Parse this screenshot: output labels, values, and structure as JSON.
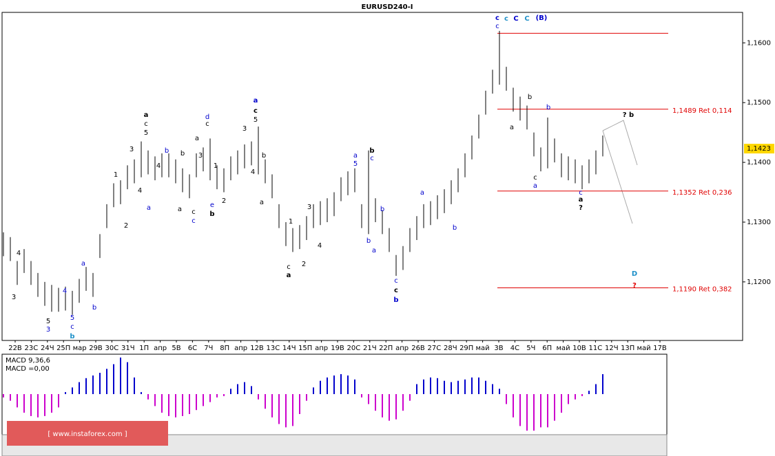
{
  "chart_data": {
    "type": "ohlc",
    "title": "EURUSD240-I",
    "ylim": [
      1.1102,
      1.1651
    ],
    "yticks": [
      {
        "value": 1.16,
        "label": "1,1600"
      },
      {
        "value": 1.15,
        "label": "1,1500"
      },
      {
        "value": 1.14,
        "label": "1,1400"
      },
      {
        "value": 1.13,
        "label": "1,1300"
      },
      {
        "value": 1.12,
        "label": "1,1200"
      }
    ],
    "categories": [
      "22В",
      "23С",
      "24Ч",
      "25П",
      "мар",
      "29В",
      "30С",
      "31Ч",
      "1П",
      "апр",
      "5В",
      "6С",
      "7Ч",
      "8П",
      "апр",
      "12В",
      "13С",
      "14Ч",
      "15П",
      "апр",
      "19В",
      "20С",
      "21Ч",
      "22П",
      "апр",
      "26В",
      "27С",
      "28Ч",
      "29П",
      "май",
      "3В",
      "4С",
      "5Ч",
      "6П",
      "май",
      "10В",
      "11С",
      "12Ч",
      "13П",
      "май",
      "17В"
    ],
    "color": "#000000",
    "high": [
      1.1283,
      1.1275,
      1.1235,
      1.1255,
      1.1235,
      1.1215,
      1.12,
      1.1195,
      1.119,
      1.1192,
      1.1185,
      1.1205,
      1.1225,
      1.1215,
      1.128,
      1.133,
      1.1365,
      1.137,
      1.1395,
      1.1405,
      1.1435,
      1.142,
      1.141,
      1.1415,
      1.1415,
      1.1405,
      1.139,
      1.138,
      1.1415,
      1.1425,
      1.144,
      1.1395,
      1.139,
      1.141,
      1.142,
      1.143,
      1.1435,
      1.146,
      1.1405,
      1.138,
      1.133,
      1.13,
      1.129,
      1.1295,
      1.131,
      1.133,
      1.1335,
      1.134,
      1.135,
      1.1375,
      1.1385,
      1.139,
      1.133,
      1.142,
      1.134,
      1.132,
      1.129,
      1.1245,
      1.126,
      1.129,
      1.131,
      1.133,
      1.1335,
      1.1345,
      1.1355,
      1.137,
      1.139,
      1.1415,
      1.1445,
      1.148,
      1.152,
      1.1555,
      1.162,
      1.156,
      1.1525,
      1.151,
      1.1495,
      1.145,
      1.1425,
      1.1475,
      1.144,
      1.1415,
      1.141,
      1.1405,
      1.1395,
      1.1405,
      1.142,
      1.1445
    ],
    "low": [
      1.1243,
      1.1235,
      1.1195,
      1.1215,
      1.1195,
      1.1175,
      1.116,
      1.115,
      1.115,
      1.1152,
      1.1145,
      1.1165,
      1.1185,
      1.1175,
      1.124,
      1.129,
      1.1325,
      1.133,
      1.1355,
      1.1365,
      1.1375,
      1.138,
      1.137,
      1.1375,
      1.1375,
      1.1365,
      1.135,
      1.134,
      1.1375,
      1.1385,
      1.137,
      1.1355,
      1.135,
      1.137,
      1.138,
      1.139,
      1.1395,
      1.138,
      1.1365,
      1.134,
      1.129,
      1.126,
      1.125,
      1.1255,
      1.127,
      1.129,
      1.1295,
      1.13,
      1.131,
      1.1335,
      1.1345,
      1.135,
      1.129,
      1.128,
      1.13,
      1.128,
      1.125,
      1.121,
      1.122,
      1.125,
      1.127,
      1.129,
      1.1295,
      1.1305,
      1.1315,
      1.133,
      1.135,
      1.1375,
      1.1405,
      1.144,
      1.148,
      1.1515,
      1.153,
      1.152,
      1.1485,
      1.147,
      1.1455,
      1.141,
      1.1385,
      1.139,
      1.14,
      1.1375,
      1.137,
      1.1365,
      1.1355,
      1.1365,
      1.138,
      1.141
    ],
    "last_price": {
      "value": 1.1423,
      "label": "1,1423"
    },
    "levels": [
      {
        "value": 1.1616
      },
      {
        "value": 1.1489,
        "label": "1,1489 Ret 0,114"
      },
      {
        "value": 1.1352,
        "label": "1,1352 Ret 0,236"
      },
      {
        "value": 1.119,
        "label": "1,1190 Ret 0,382"
      }
    ],
    "level_color": "#e00000",
    "macd": {
      "label": "MACD 9,36,6",
      "value_label": "MACD =0,00",
      "ylim": [
        -60,
        60
      ],
      "positive_color": "#0000cc",
      "negative_color": "#cc00cc",
      "values": [
        -5,
        -10,
        -20,
        -28,
        -33,
        -35,
        -33,
        -28,
        -20,
        3,
        10,
        18,
        24,
        28,
        32,
        38,
        45,
        55,
        48,
        25,
        3,
        -8,
        -18,
        -28,
        -33,
        -35,
        -33,
        -30,
        -24,
        -18,
        -12,
        -5,
        -3,
        8,
        15,
        18,
        12,
        -8,
        -22,
        -35,
        -45,
        -50,
        -48,
        -30,
        -10,
        10,
        20,
        25,
        28,
        30,
        28,
        22,
        -5,
        -15,
        -25,
        -35,
        -40,
        -38,
        -25,
        -10,
        15,
        22,
        25,
        24,
        20,
        18,
        20,
        22,
        25,
        25,
        20,
        15,
        8,
        -15,
        -35,
        -48,
        -55,
        -55,
        -50,
        -50,
        -40,
        -28,
        -15,
        -8,
        -3,
        5,
        15,
        30
      ]
    },
    "annotations": [
      {
        "text": "4",
        "color": "#000000"
      },
      {
        "text": "3",
        "color": "#000000"
      },
      {
        "text": "5",
        "color": "#000000"
      },
      {
        "text": "3",
        "color": "#0000cc"
      },
      {
        "text": "4",
        "color": "#0000cc"
      },
      {
        "text": "5",
        "color": "#0000cc"
      },
      {
        "text": "c",
        "color": "#0000cc"
      },
      {
        "text": "b",
        "color": "#1e90c8"
      },
      {
        "text": "a",
        "color": "#0000cc"
      },
      {
        "text": "b",
        "color": "#0000cc"
      },
      {
        "text": "1",
        "color": "#000000"
      },
      {
        "text": "3",
        "color": "#000000"
      },
      {
        "text": "4",
        "color": "#000000"
      },
      {
        "text": "2",
        "color": "#000000"
      },
      {
        "text": "a",
        "color": "#0000cc"
      },
      {
        "text": "a",
        "color": "#000000"
      },
      {
        "text": "c",
        "color": "#000000"
      },
      {
        "text": "5",
        "color": "#000000"
      },
      {
        "text": "b",
        "color": "#0000cc"
      },
      {
        "text": "b",
        "color": "#000000"
      },
      {
        "text": "a",
        "color": "#000000"
      },
      {
        "text": "4",
        "color": "#000000"
      },
      {
        "text": "a",
        "color": "#000000"
      },
      {
        "text": "3",
        "color": "#000000"
      },
      {
        "text": "c",
        "color": "#000000"
      },
      {
        "text": "c",
        "color": "#0000cc"
      },
      {
        "text": "d",
        "color": "#0000cc"
      },
      {
        "text": "c",
        "color": "#000000"
      },
      {
        "text": "1",
        "color": "#000000"
      },
      {
        "text": "e",
        "color": "#0000cc"
      },
      {
        "text": "b",
        "color": "#000000"
      },
      {
        "text": "2",
        "color": "#000000"
      },
      {
        "text": "3",
        "color": "#000000"
      },
      {
        "text": "a",
        "color": "#0000cc"
      },
      {
        "text": "c",
        "color": "#000000"
      },
      {
        "text": "5",
        "color": "#000000"
      },
      {
        "text": "4",
        "color": "#000000"
      },
      {
        "text": "b",
        "color": "#000000"
      },
      {
        "text": "a",
        "color": "#000000"
      },
      {
        "text": "1",
        "color": "#000000"
      },
      {
        "text": "c",
        "color": "#000000"
      },
      {
        "text": "a",
        "color": "#000000"
      },
      {
        "text": "2",
        "color": "#000000"
      },
      {
        "text": "3",
        "color": "#000000"
      },
      {
        "text": "4",
        "color": "#000000"
      },
      {
        "text": "a",
        "color": "#0000cc"
      },
      {
        "text": "5",
        "color": "#0000cc"
      },
      {
        "text": "b",
        "color": "#000000"
      },
      {
        "text": "c",
        "color": "#0000cc"
      },
      {
        "text": "b",
        "color": "#0000cc"
      },
      {
        "text": "b",
        "color": "#0000cc"
      },
      {
        "text": "a",
        "color": "#0000cc"
      },
      {
        "text": "c",
        "color": "#0000cc"
      },
      {
        "text": "c",
        "color": "#000000"
      },
      {
        "text": "b",
        "color": "#0000cc"
      },
      {
        "text": "a",
        "color": "#0000cc"
      },
      {
        "text": "b",
        "color": "#0000cc"
      },
      {
        "text": "c",
        "color": "#0000cc"
      },
      {
        "text": "b",
        "color": "#000000"
      },
      {
        "text": "a",
        "color": "#000000"
      },
      {
        "text": "b",
        "color": "#0000cc"
      },
      {
        "text": "c",
        "color": "#000000"
      },
      {
        "text": "a",
        "color": "#0000cc"
      },
      {
        "text": "c",
        "color": "#0000cc"
      },
      {
        "text": "a",
        "color": "#000000"
      },
      {
        "text": "?",
        "color": "#000000"
      },
      {
        "text": "? b",
        "color": "#000000"
      },
      {
        "text": "D",
        "color": "#1e90c8"
      },
      {
        "text": "?",
        "color": "#e00000"
      },
      {
        "text": "c",
        "color": "#0000cc"
      },
      {
        "text": "c",
        "color": "#1e90c8"
      },
      {
        "text": "C",
        "color": "#0000cc"
      },
      {
        "text": "C",
        "color": "#1e90c8"
      },
      {
        "text": "(B)",
        "color": "#0000cc"
      }
    ],
    "watermark": "[ www.instaforex.com ]"
  }
}
